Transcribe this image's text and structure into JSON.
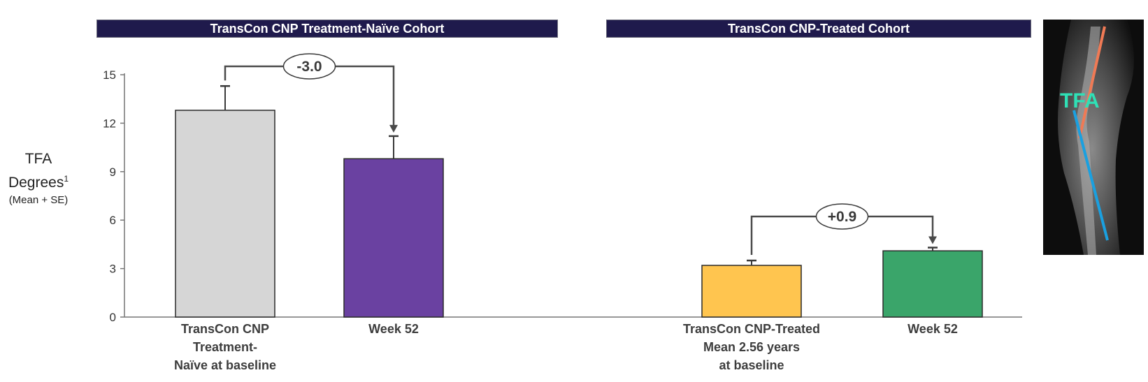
{
  "headers": {
    "left": "TransCon CNP Treatment-Naïve Cohort",
    "right": "TransCon CNP-Treated Cohort"
  },
  "y_axis": {
    "line1": "TFA",
    "line2": "Degrees",
    "sup": "1",
    "line3": "(Mean + SE)"
  },
  "image_label": "TFA",
  "colors": {
    "header_bg": "#1f1a4c",
    "naive_baseline": "#d6d6d6",
    "naive_week52": "#6a41a1",
    "treated_baseline": "#ffc54f",
    "treated_week52": "#3aa56a",
    "xray_line_red": "#f07a55",
    "xray_line_blue": "#1aa0e0",
    "xray_label": "#2fe0b6"
  },
  "chart_data": {
    "type": "bar",
    "ylabel": "TFA Degrees1 (Mean + SE)",
    "ylim": [
      0,
      15
    ],
    "yticks": [
      0,
      3,
      6,
      9,
      12,
      15
    ],
    "grid": false,
    "categories": [
      [
        "TransCon CNP",
        "Treatment-",
        "Naïve at baseline"
      ],
      [
        "Week 52"
      ],
      [
        "TransCon CNP-Treated",
        "Mean 2.56 years",
        "at baseline"
      ],
      [
        "Week 52"
      ]
    ],
    "values": [
      12.8,
      9.8,
      3.2,
      4.1
    ],
    "errors": [
      1.5,
      1.4,
      0.3,
      0.2
    ],
    "annotations": [
      {
        "label": "-3.0",
        "from": 0,
        "to": 1
      },
      {
        "label": "+0.9",
        "from": 2,
        "to": 3
      }
    ]
  }
}
